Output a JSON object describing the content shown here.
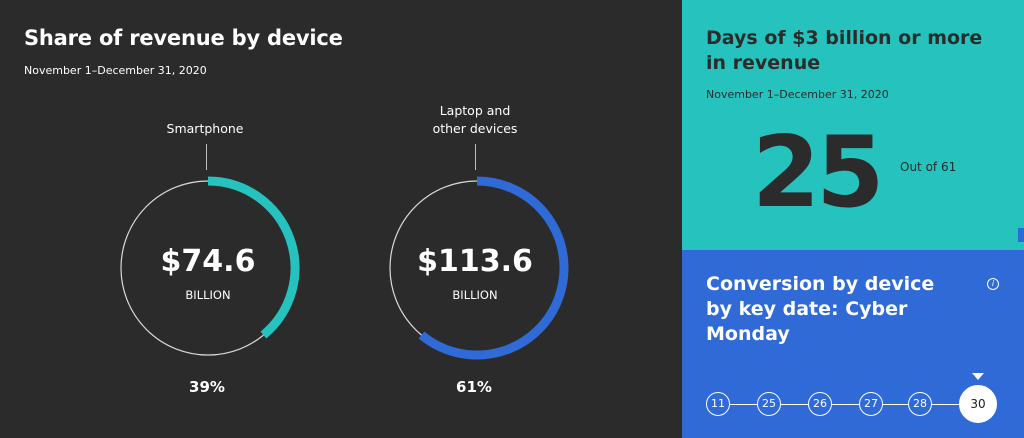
{
  "left": {
    "title": "Share of revenue by device",
    "date": "November 1–December 31, 2020",
    "donuts": [
      {
        "label": "Smartphone",
        "value": "$74.6",
        "unit": "BILLION",
        "percent_text": "39%",
        "share": 0.39,
        "color": "#26c2bd"
      },
      {
        "label_line1": "Laptop and",
        "label_line2": "other devices",
        "value": "$113.6",
        "unit": "BILLION",
        "percent_text": "61%",
        "share": 0.61,
        "color": "#2f6ad7"
      }
    ]
  },
  "top_right": {
    "title": "Days of $3 billion or more in revenue",
    "date": "November 1–December 31, 2020",
    "big_number": "25",
    "out_of": "Out of 61"
  },
  "bottom_right": {
    "title_line1": "Conversion by device",
    "title_line2": "by key date: Cyber Monday",
    "info_icon": "i",
    "dates": [
      "11",
      "25",
      "26",
      "27",
      "28",
      "30"
    ],
    "active_date": "30"
  },
  "colors": {
    "teal": "#26c2bd",
    "blue": "#2f6ad7",
    "dark": "#2b2b2b"
  }
}
